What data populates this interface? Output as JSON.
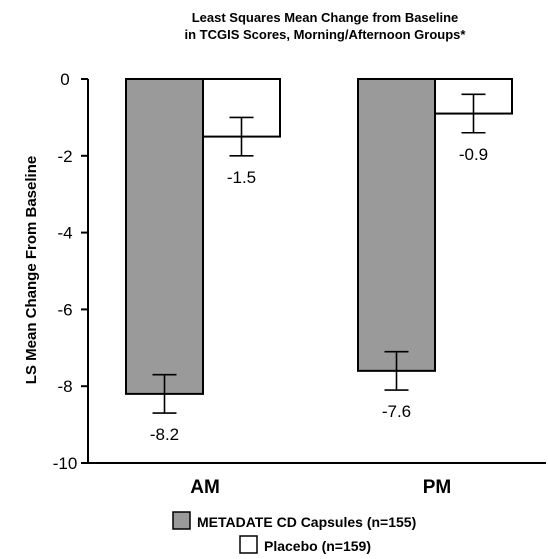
{
  "chart_data": {
    "type": "bar",
    "title_lines": [
      "Least Squares Mean Change from Baseline",
      "in TCGIS Scores, Morning/Afternoon Groups*"
    ],
    "ylabel": "LS Mean Change From Baseline",
    "xlabel": "",
    "ylim": [
      -10,
      0
    ],
    "yticks": [
      0,
      -2,
      -4,
      -6,
      -8,
      -10
    ],
    "ytick_labels": [
      "0",
      "-2",
      "-4",
      "-6",
      "-8",
      "-10"
    ],
    "categories": [
      "AM",
      "PM"
    ],
    "series": [
      {
        "name": "METADATE CD Capsules (n=155)",
        "color": "#9a9a9a",
        "values": [
          -8.2,
          -7.6
        ],
        "value_labels": [
          "-8.2",
          "-7.6"
        ],
        "error": [
          0.5,
          0.5
        ]
      },
      {
        "name": "Placebo (n=159)",
        "color": "#ffffff",
        "values": [
          -1.5,
          -0.9
        ],
        "value_labels": [
          "-1.5",
          "-0.9"
        ],
        "error": [
          0.5,
          0.5
        ]
      }
    ],
    "grid": false,
    "legend_position": "bottom"
  }
}
